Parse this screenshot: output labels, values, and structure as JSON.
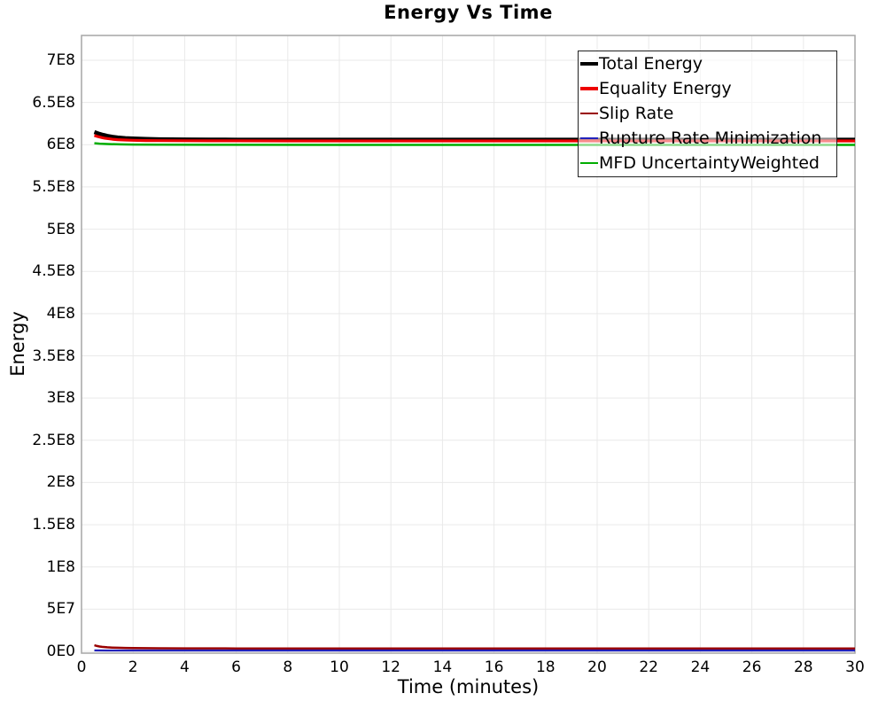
{
  "chart_data": {
    "type": "line",
    "title": "Energy Vs Time",
    "xlabel": "Time (minutes)",
    "ylabel": "Energy",
    "xlim": [
      0,
      30
    ],
    "ylim": [
      0,
      700000000.0
    ],
    "grid": true,
    "legend_position": "top-right-inside",
    "x_ticks": [
      {
        "value": 0,
        "label": "0"
      },
      {
        "value": 2,
        "label": "2"
      },
      {
        "value": 4,
        "label": "4"
      },
      {
        "value": 6,
        "label": "6"
      },
      {
        "value": 8,
        "label": "8"
      },
      {
        "value": 10,
        "label": "10"
      },
      {
        "value": 12,
        "label": "12"
      },
      {
        "value": 14,
        "label": "14"
      },
      {
        "value": 16,
        "label": "16"
      },
      {
        "value": 18,
        "label": "18"
      },
      {
        "value": 20,
        "label": "20"
      },
      {
        "value": 22,
        "label": "22"
      },
      {
        "value": 24,
        "label": "24"
      },
      {
        "value": 26,
        "label": "26"
      },
      {
        "value": 28,
        "label": "28"
      },
      {
        "value": 30,
        "label": "30"
      }
    ],
    "y_ticks": [
      {
        "value": 0,
        "label": "0E0"
      },
      {
        "value": 50000000.0,
        "label": "5E7"
      },
      {
        "value": 100000000.0,
        "label": "1E8"
      },
      {
        "value": 150000000.0,
        "label": "1.5E8"
      },
      {
        "value": 200000000.0,
        "label": "2E8"
      },
      {
        "value": 250000000.0,
        "label": "2.5E8"
      },
      {
        "value": 300000000.0,
        "label": "3E8"
      },
      {
        "value": 350000000.0,
        "label": "3.5E8"
      },
      {
        "value": 400000000.0,
        "label": "4E8"
      },
      {
        "value": 450000000.0,
        "label": "4.5E8"
      },
      {
        "value": 500000000.0,
        "label": "5E8"
      },
      {
        "value": 550000000.0,
        "label": "5.5E8"
      },
      {
        "value": 600000000.0,
        "label": "6E8"
      },
      {
        "value": 650000000.0,
        "label": "6.5E8"
      },
      {
        "value": 700000000.0,
        "label": "7E8"
      }
    ],
    "series": [
      {
        "name": "Total Energy",
        "color": "#000000",
        "line_width": 4.5,
        "legend_line_height": 4,
        "points": [
          [
            0.5,
            615000000.0
          ],
          [
            0.6,
            613800000.0
          ],
          [
            0.7,
            612800000.0
          ],
          [
            0.8,
            611900000.0
          ],
          [
            0.9,
            611200000.0
          ],
          [
            1.0,
            610500000.0
          ],
          [
            1.2,
            609400000.0
          ],
          [
            1.4,
            608600000.0
          ],
          [
            1.7,
            607800000.0
          ],
          [
            2.0,
            607300000.0
          ],
          [
            2.5,
            606800000.0
          ],
          [
            3.0,
            606500000.0
          ],
          [
            4,
            606200000.0
          ],
          [
            5,
            606100000.0
          ],
          [
            6,
            606000000.0
          ],
          [
            8,
            606000000.0
          ],
          [
            12,
            606000000.0
          ],
          [
            16,
            606000000.0
          ],
          [
            20,
            606000000.0
          ],
          [
            25,
            606000000.0
          ],
          [
            30,
            606000000.0
          ]
        ]
      },
      {
        "name": "Equality Energy",
        "color": "#ee0000",
        "line_width": 3.2,
        "legend_line_height": 4,
        "points": [
          [
            0.5,
            611000000.0
          ],
          [
            0.6,
            610000000.0
          ],
          [
            0.7,
            609100000.0
          ],
          [
            0.8,
            608400000.0
          ],
          [
            0.9,
            607800000.0
          ],
          [
            1.0,
            607300000.0
          ],
          [
            1.2,
            606500000.0
          ],
          [
            1.4,
            606000000.0
          ],
          [
            1.7,
            605500000.0
          ],
          [
            2.0,
            605200000.0
          ],
          [
            2.5,
            604900000.0
          ],
          [
            3.0,
            604800000.0
          ],
          [
            4,
            604700000.0
          ],
          [
            5,
            604600000.0
          ],
          [
            6,
            604600000.0
          ],
          [
            8,
            604500000.0
          ],
          [
            12,
            604500000.0
          ],
          [
            16,
            604500000.0
          ],
          [
            20,
            604500000.0
          ],
          [
            25,
            604500000.0
          ],
          [
            30,
            604500000.0
          ]
        ]
      },
      {
        "name": "Slip Rate",
        "color": "#990000",
        "line_width": 2.5,
        "legend_line_height": 2.5,
        "points": [
          [
            0.5,
            7200000.0
          ],
          [
            0.6,
            6400000.0
          ],
          [
            0.7,
            5800000.0
          ],
          [
            0.8,
            5400000.0
          ],
          [
            0.9,
            5100000.0
          ],
          [
            1.0,
            4800000.0
          ],
          [
            1.2,
            4500000.0
          ],
          [
            1.4,
            4300000.0
          ],
          [
            1.7,
            4100000.0
          ],
          [
            2.0,
            3900000.0
          ],
          [
            2.5,
            3800000.0
          ],
          [
            3,
            3700000.0
          ],
          [
            4,
            3600000.0
          ],
          [
            6,
            3500000.0
          ],
          [
            10,
            3400000.0
          ],
          [
            15,
            3400000.0
          ],
          [
            20,
            3400000.0
          ],
          [
            25,
            3400000.0
          ],
          [
            30,
            3400000.0
          ]
        ]
      },
      {
        "name": "Rupture Rate Minimization",
        "color": "#2222bb",
        "line_width": 2.2,
        "legend_line_height": 2.5,
        "points": [
          [
            0.5,
            1200000.0
          ],
          [
            1,
            1100000.0
          ],
          [
            2,
            1000000.0
          ],
          [
            5,
            1000000.0
          ],
          [
            10,
            1000000.0
          ],
          [
            20,
            1000000.0
          ],
          [
            30,
            1000000.0
          ]
        ]
      },
      {
        "name": "MFD UncertaintyWeighted",
        "color": "#00ad00",
        "line_width": 2.5,
        "legend_line_height": 2.5,
        "points": [
          [
            0.5,
            601800000.0
          ],
          [
            0.7,
            601200000.0
          ],
          [
            1.0,
            600800000.0
          ],
          [
            1.5,
            600400000.0
          ],
          [
            2,
            600200000.0
          ],
          [
            3,
            600000000.0
          ],
          [
            5,
            599900000.0
          ],
          [
            10,
            599800000.0
          ],
          [
            20,
            599800000.0
          ],
          [
            30,
            599800000.0
          ]
        ]
      }
    ],
    "colors": {
      "grid": "#e9e9e9",
      "plot_border": "#a6a6a6",
      "background": "#ffffff"
    }
  }
}
